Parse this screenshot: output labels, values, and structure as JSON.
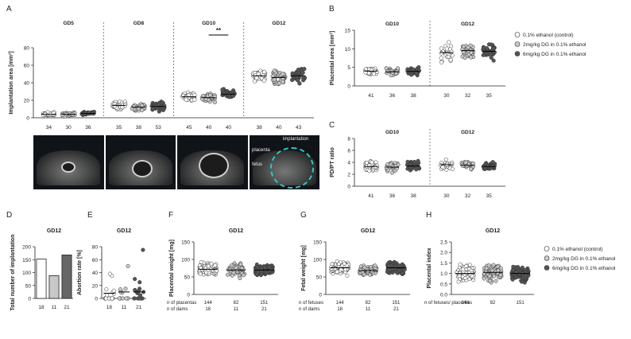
{
  "legend": {
    "items": [
      {
        "label": "0.1% ethanol (control)",
        "color": "#ffffff"
      },
      {
        "label": "2mg/kg DG in 0.1% ethanol",
        "color": "#c8c8c8"
      },
      {
        "label": "6mg/kg DG in 0.1% ethanol",
        "color": "#555555"
      }
    ]
  },
  "ultrasound": {
    "labels": [
      "implantation",
      "placenta",
      "fetus"
    ]
  },
  "chart_data": [
    {
      "panel": "A",
      "type": "scatter",
      "ylabel": "Implantation area [mm²]",
      "ylim": [
        0,
        80
      ],
      "yticks": [
        0,
        20,
        40,
        60,
        80
      ],
      "groups": [
        "GD5",
        "GD8",
        "GD10",
        "GD12"
      ],
      "significance": {
        "group": "GD10",
        "label": "**"
      },
      "series": [
        {
          "group": "GD5",
          "n": 34,
          "mean": 4,
          "spread": 1.5,
          "color": "#ffffff"
        },
        {
          "group": "GD5",
          "n": 30,
          "mean": 4,
          "spread": 1.5,
          "color": "#c8c8c8"
        },
        {
          "group": "GD5",
          "n": 36,
          "mean": 5,
          "spread": 1.5,
          "color": "#555555"
        },
        {
          "group": "GD8",
          "n": 35,
          "mean": 14,
          "spread": 4,
          "color": "#ffffff"
        },
        {
          "group": "GD8",
          "n": 38,
          "mean": 12,
          "spread": 3,
          "color": "#c8c8c8"
        },
        {
          "group": "GD8",
          "n": 53,
          "mean": 13,
          "spread": 3.5,
          "color": "#555555"
        },
        {
          "group": "GD10",
          "n": 45,
          "mean": 24,
          "spread": 4,
          "color": "#ffffff"
        },
        {
          "group": "GD10",
          "n": 40,
          "mean": 23,
          "spread": 4,
          "color": "#c8c8c8"
        },
        {
          "group": "GD10",
          "n": 40,
          "mean": 27,
          "spread": 4,
          "color": "#555555"
        },
        {
          "group": "GD12",
          "n": 38,
          "mean": 48,
          "spread": 7,
          "color": "#ffffff"
        },
        {
          "group": "GD12",
          "n": 40,
          "mean": 46,
          "spread": 7,
          "color": "#c8c8c8"
        },
        {
          "group": "GD12",
          "n": 43,
          "mean": 48,
          "spread": 7,
          "color": "#555555"
        }
      ]
    },
    {
      "panel": "B",
      "type": "scatter",
      "ylabel": "Placental area [mm²]",
      "ylim": [
        0,
        15
      ],
      "yticks": [
        0,
        5,
        10,
        15
      ],
      "groups": [
        "GD10",
        "GD12"
      ],
      "series": [
        {
          "group": "GD10",
          "n": 41,
          "mean": 4,
          "spread": 0.8,
          "color": "#ffffff"
        },
        {
          "group": "GD10",
          "n": 36,
          "mean": 3.8,
          "spread": 0.8,
          "color": "#c8c8c8"
        },
        {
          "group": "GD10",
          "n": 38,
          "mean": 3.9,
          "spread": 0.8,
          "color": "#555555"
        },
        {
          "group": "GD12",
          "n": 30,
          "mean": 9,
          "spread": 2,
          "color": "#ffffff"
        },
        {
          "group": "GD12",
          "n": 32,
          "mean": 9.5,
          "spread": 1.8,
          "color": "#c8c8c8"
        },
        {
          "group": "GD12",
          "n": 35,
          "mean": 9.3,
          "spread": 1.8,
          "color": "#555555"
        }
      ]
    },
    {
      "panel": "C",
      "type": "scatter",
      "ylabel": "PD/PT ratio",
      "ylim": [
        0,
        8
      ],
      "yticks": [
        0,
        2,
        4,
        6,
        8
      ],
      "groups": [
        "GD10",
        "GD12"
      ],
      "series": [
        {
          "group": "GD10",
          "n": 41,
          "mean": 3.3,
          "spread": 0.8,
          "color": "#ffffff"
        },
        {
          "group": "GD10",
          "n": 36,
          "mean": 3.2,
          "spread": 0.8,
          "color": "#c8c8c8"
        },
        {
          "group": "GD10",
          "n": 38,
          "mean": 3.4,
          "spread": 0.7,
          "color": "#555555"
        },
        {
          "group": "GD12",
          "n": 30,
          "mean": 3.6,
          "spread": 0.8,
          "color": "#ffffff"
        },
        {
          "group": "GD12",
          "n": 32,
          "mean": 3.5,
          "spread": 0.6,
          "color": "#c8c8c8"
        },
        {
          "group": "GD12",
          "n": 35,
          "mean": 3.3,
          "spread": 0.6,
          "color": "#555555"
        }
      ]
    },
    {
      "panel": "D",
      "type": "bar",
      "title": "GD12",
      "ylabel": "Total number of implantation",
      "ylim": [
        0,
        200
      ],
      "yticks": [
        0,
        50,
        100,
        150,
        200
      ],
      "categories": [
        "18",
        "11",
        "21"
      ],
      "values": [
        152,
        88,
        168
      ],
      "colors": [
        "#ffffff",
        "#c8c8c8",
        "#666666"
      ]
    },
    {
      "panel": "E",
      "type": "scatter",
      "title": "GD12",
      "ylabel": "Abortion rate [%]",
      "ylim": [
        0,
        80
      ],
      "yticks": [
        0,
        20,
        40,
        60,
        80
      ],
      "categories": [
        "18",
        "11",
        "21"
      ],
      "series": [
        {
          "name": "18",
          "color": "#ffffff",
          "values": [
            0,
            0,
            0,
            0,
            0,
            0,
            0,
            0,
            0,
            0,
            5,
            7,
            10,
            10,
            12,
            14,
            35,
            38
          ],
          "mean": 8
        },
        {
          "name": "11",
          "color": "#c8c8c8",
          "values": [
            0,
            0,
            0,
            0,
            0,
            0,
            9,
            10,
            14,
            15,
            50
          ],
          "mean": 10
        },
        {
          "name": "21",
          "color": "#555555",
          "values": [
            0,
            0,
            0,
            0,
            0,
            0,
            0,
            0,
            0,
            0,
            0,
            5,
            8,
            10,
            10,
            12,
            13,
            15,
            25,
            30,
            75
          ],
          "mean": 10
        }
      ]
    },
    {
      "panel": "F",
      "type": "scatter",
      "title": "GD12",
      "ylabel": "Placental weight [mg]",
      "ylim": [
        0,
        150
      ],
      "yticks": [
        0,
        50,
        100,
        150
      ],
      "footer_rows": [
        {
          "label": "n of placentas",
          "values": [
            "144",
            "82",
            "151"
          ]
        },
        {
          "label": "n of dams",
          "values": [
            "18",
            "11",
            "21"
          ]
        }
      ],
      "series": [
        {
          "n": 144,
          "mean": 72,
          "spread": 14,
          "color": "#ffffff"
        },
        {
          "n": 82,
          "mean": 70,
          "spread": 15,
          "color": "#c8c8c8"
        },
        {
          "n": 151,
          "mean": 70,
          "spread": 13,
          "color": "#555555"
        }
      ]
    },
    {
      "panel": "G",
      "type": "scatter",
      "title": "GD12",
      "ylabel": "Fetal weight [mg]",
      "ylim": [
        0,
        150
      ],
      "yticks": [
        0,
        50,
        100,
        150
      ],
      "footer_rows": [
        {
          "label": "n of fetuses",
          "values": [
            "144",
            "82",
            "151"
          ]
        },
        {
          "label": "n of dams",
          "values": [
            "18",
            "11",
            "21"
          ]
        }
      ],
      "series": [
        {
          "n": 144,
          "mean": 76,
          "spread": 15,
          "color": "#ffffff"
        },
        {
          "n": 82,
          "mean": 68,
          "spread": 12,
          "color": "#c8c8c8"
        },
        {
          "n": 151,
          "mean": 76,
          "spread": 14,
          "color": "#555555"
        }
      ]
    },
    {
      "panel": "H",
      "type": "scatter",
      "title": "GD12",
      "ylabel": "Placental index",
      "ylim": [
        0,
        2.5
      ],
      "yticks": [
        "0.0",
        "0.5",
        "1.0",
        "1.5",
        "2.0",
        "2.5"
      ],
      "footer_rows": [
        {
          "label": "n of fetuses/ placentas",
          "values": [
            "144",
            "82",
            "151"
          ]
        }
      ],
      "series": [
        {
          "n": 144,
          "mean": 1.0,
          "spread": 0.3,
          "color": "#ffffff"
        },
        {
          "n": 82,
          "mean": 1.05,
          "spread": 0.35,
          "color": "#c8c8c8"
        },
        {
          "n": 151,
          "mean": 1.0,
          "spread": 0.3,
          "color": "#555555"
        }
      ]
    }
  ]
}
